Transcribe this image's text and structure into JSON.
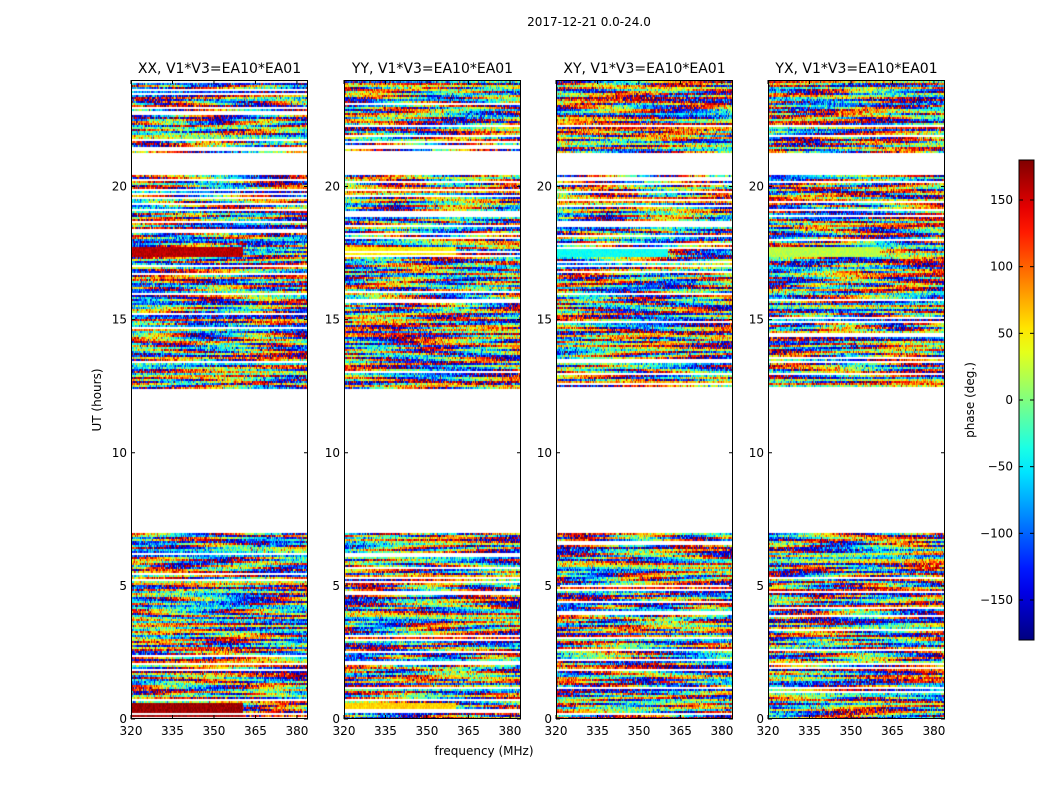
{
  "chart_data": {
    "type": "heatmap",
    "title": "2017-12-21 0.0-24.0",
    "xlabel": "frequency (MHz)",
    "ylabel": "UT (hours)",
    "xlim": [
      320,
      384
    ],
    "ylim": [
      0,
      24
    ],
    "x_ticks": [
      320,
      335,
      350,
      365,
      380
    ],
    "y_ticks": [
      0,
      5,
      10,
      15,
      20
    ],
    "colormap": "jet",
    "colorbar": {
      "label": "phase (deg.)",
      "range": [
        -180,
        180
      ],
      "ticks": [
        150,
        100,
        50,
        0,
        -50,
        -100,
        -150
      ],
      "tick_labels": [
        "150",
        "100",
        "50",
        "0",
        "−50",
        "−100",
        "−150"
      ]
    },
    "data_time_ranges_hours": [
      [
        0.0,
        7.0
      ],
      [
        12.4,
        20.4
      ],
      [
        21.2,
        24.0
      ]
    ],
    "panels": [
      {
        "name": "XX, V1*V3=EA10*EA01",
        "highlight_bands": [
          {
            "t": [
              17.3,
              17.7
            ],
            "phase": 160
          },
          {
            "t": [
              0.0,
              0.6
            ],
            "phase": 170
          }
        ]
      },
      {
        "name": "YY, V1*V3=EA10*EA01",
        "highlight_bands": [
          {
            "t": [
              17.3,
              17.7
            ],
            "phase": 50
          },
          {
            "t": [
              0.3,
              0.6
            ],
            "phase": 60
          }
        ]
      },
      {
        "name": "XY, V1*V3=EA10*EA01",
        "highlight_bands": [
          {
            "t": [
              17.3,
              17.7
            ],
            "phase": -40
          }
        ]
      },
      {
        "name": "YX, V1*V3=EA10*EA01",
        "highlight_bands": [
          {
            "t": [
              17.3,
              17.7
            ],
            "phase": 20
          }
        ]
      }
    ]
  }
}
